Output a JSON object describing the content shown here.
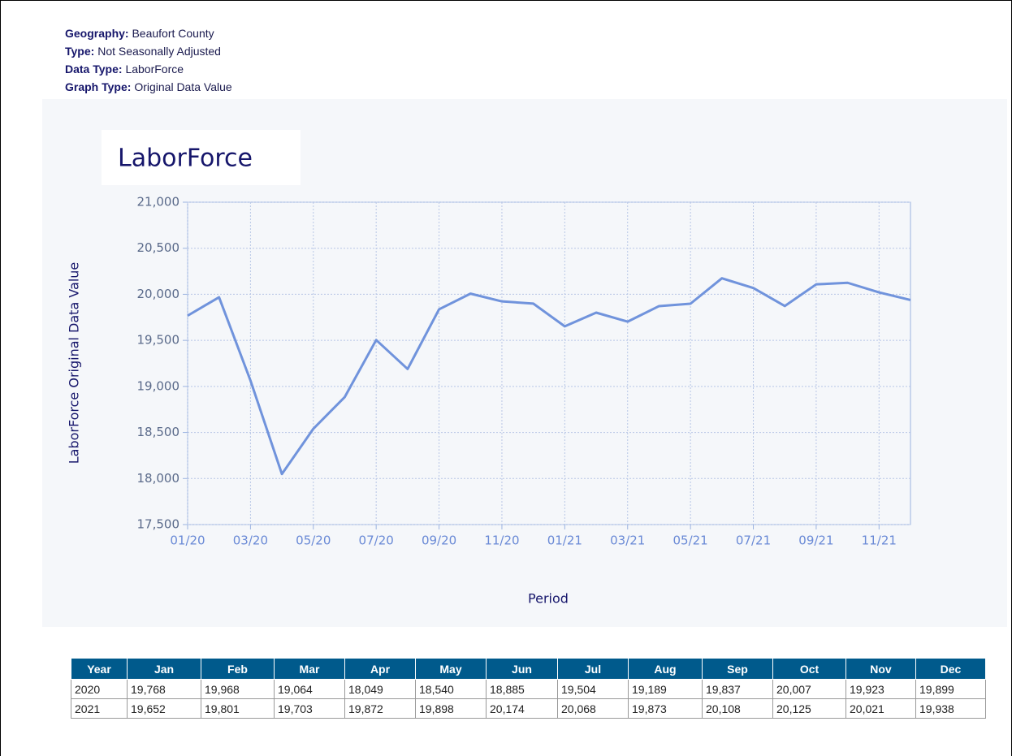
{
  "header": [
    {
      "label": "Geography:",
      "value": "Beaufort County"
    },
    {
      "label": "Type:",
      "value": "Not Seasonally Adjusted"
    },
    {
      "label": "Data Type:",
      "value": "LaborForce"
    },
    {
      "label": "Graph Type:",
      "value": "Original Data Value"
    }
  ],
  "chart_data": {
    "type": "line",
    "title": "LaborForce",
    "x_label": "Period",
    "y_label": "LaborForce Original Data Value",
    "categories": [
      "01/20",
      null,
      "03/20",
      null,
      "05/20",
      null,
      "07/20",
      null,
      "09/20",
      null,
      "11/20",
      null,
      "01/21",
      null,
      "03/21",
      null,
      "05/21",
      null,
      "07/21",
      null,
      "09/21",
      null,
      "11/21",
      null
    ],
    "values": [
      19768,
      19968,
      19064,
      18049,
      18540,
      18885,
      19504,
      19189,
      19837,
      20007,
      19923,
      19899,
      19652,
      19801,
      19703,
      19872,
      19898,
      20174,
      20068,
      19873,
      20108,
      20125,
      20021,
      19938
    ],
    "color": "#7093dc",
    "ylim": [
      17500,
      21000
    ],
    "yticks": [
      {
        "value": 17500,
        "label": "17,500"
      },
      {
        "value": 18000,
        "label": "18,000"
      },
      {
        "value": 18500,
        "label": "18,500"
      },
      {
        "value": 19000,
        "label": "19,000"
      },
      {
        "value": 19500,
        "label": "19,500"
      },
      {
        "value": 20000,
        "label": "20,000"
      },
      {
        "value": 20500,
        "label": "20,500"
      },
      {
        "value": 21000,
        "label": "21,000"
      }
    ],
    "grid": true
  },
  "table": {
    "header": [
      "Year",
      "Jan",
      "Feb",
      "Mar",
      "Apr",
      "May",
      "Jun",
      "Jul",
      "Aug",
      "Sep",
      "Oct",
      "Nov",
      "Dec"
    ],
    "rows": [
      [
        "2020",
        "19,768",
        "19,968",
        "19,064",
        "18,049",
        "18,540",
        "18,885",
        "19,504",
        "19,189",
        "19,837",
        "20,007",
        "19,923",
        "19,899"
      ],
      [
        "2021",
        "19,652",
        "19,801",
        "19,703",
        "19,872",
        "19,898",
        "20,174",
        "20,068",
        "19,873",
        "20,108",
        "20,125",
        "20,021",
        "19,938"
      ]
    ]
  }
}
